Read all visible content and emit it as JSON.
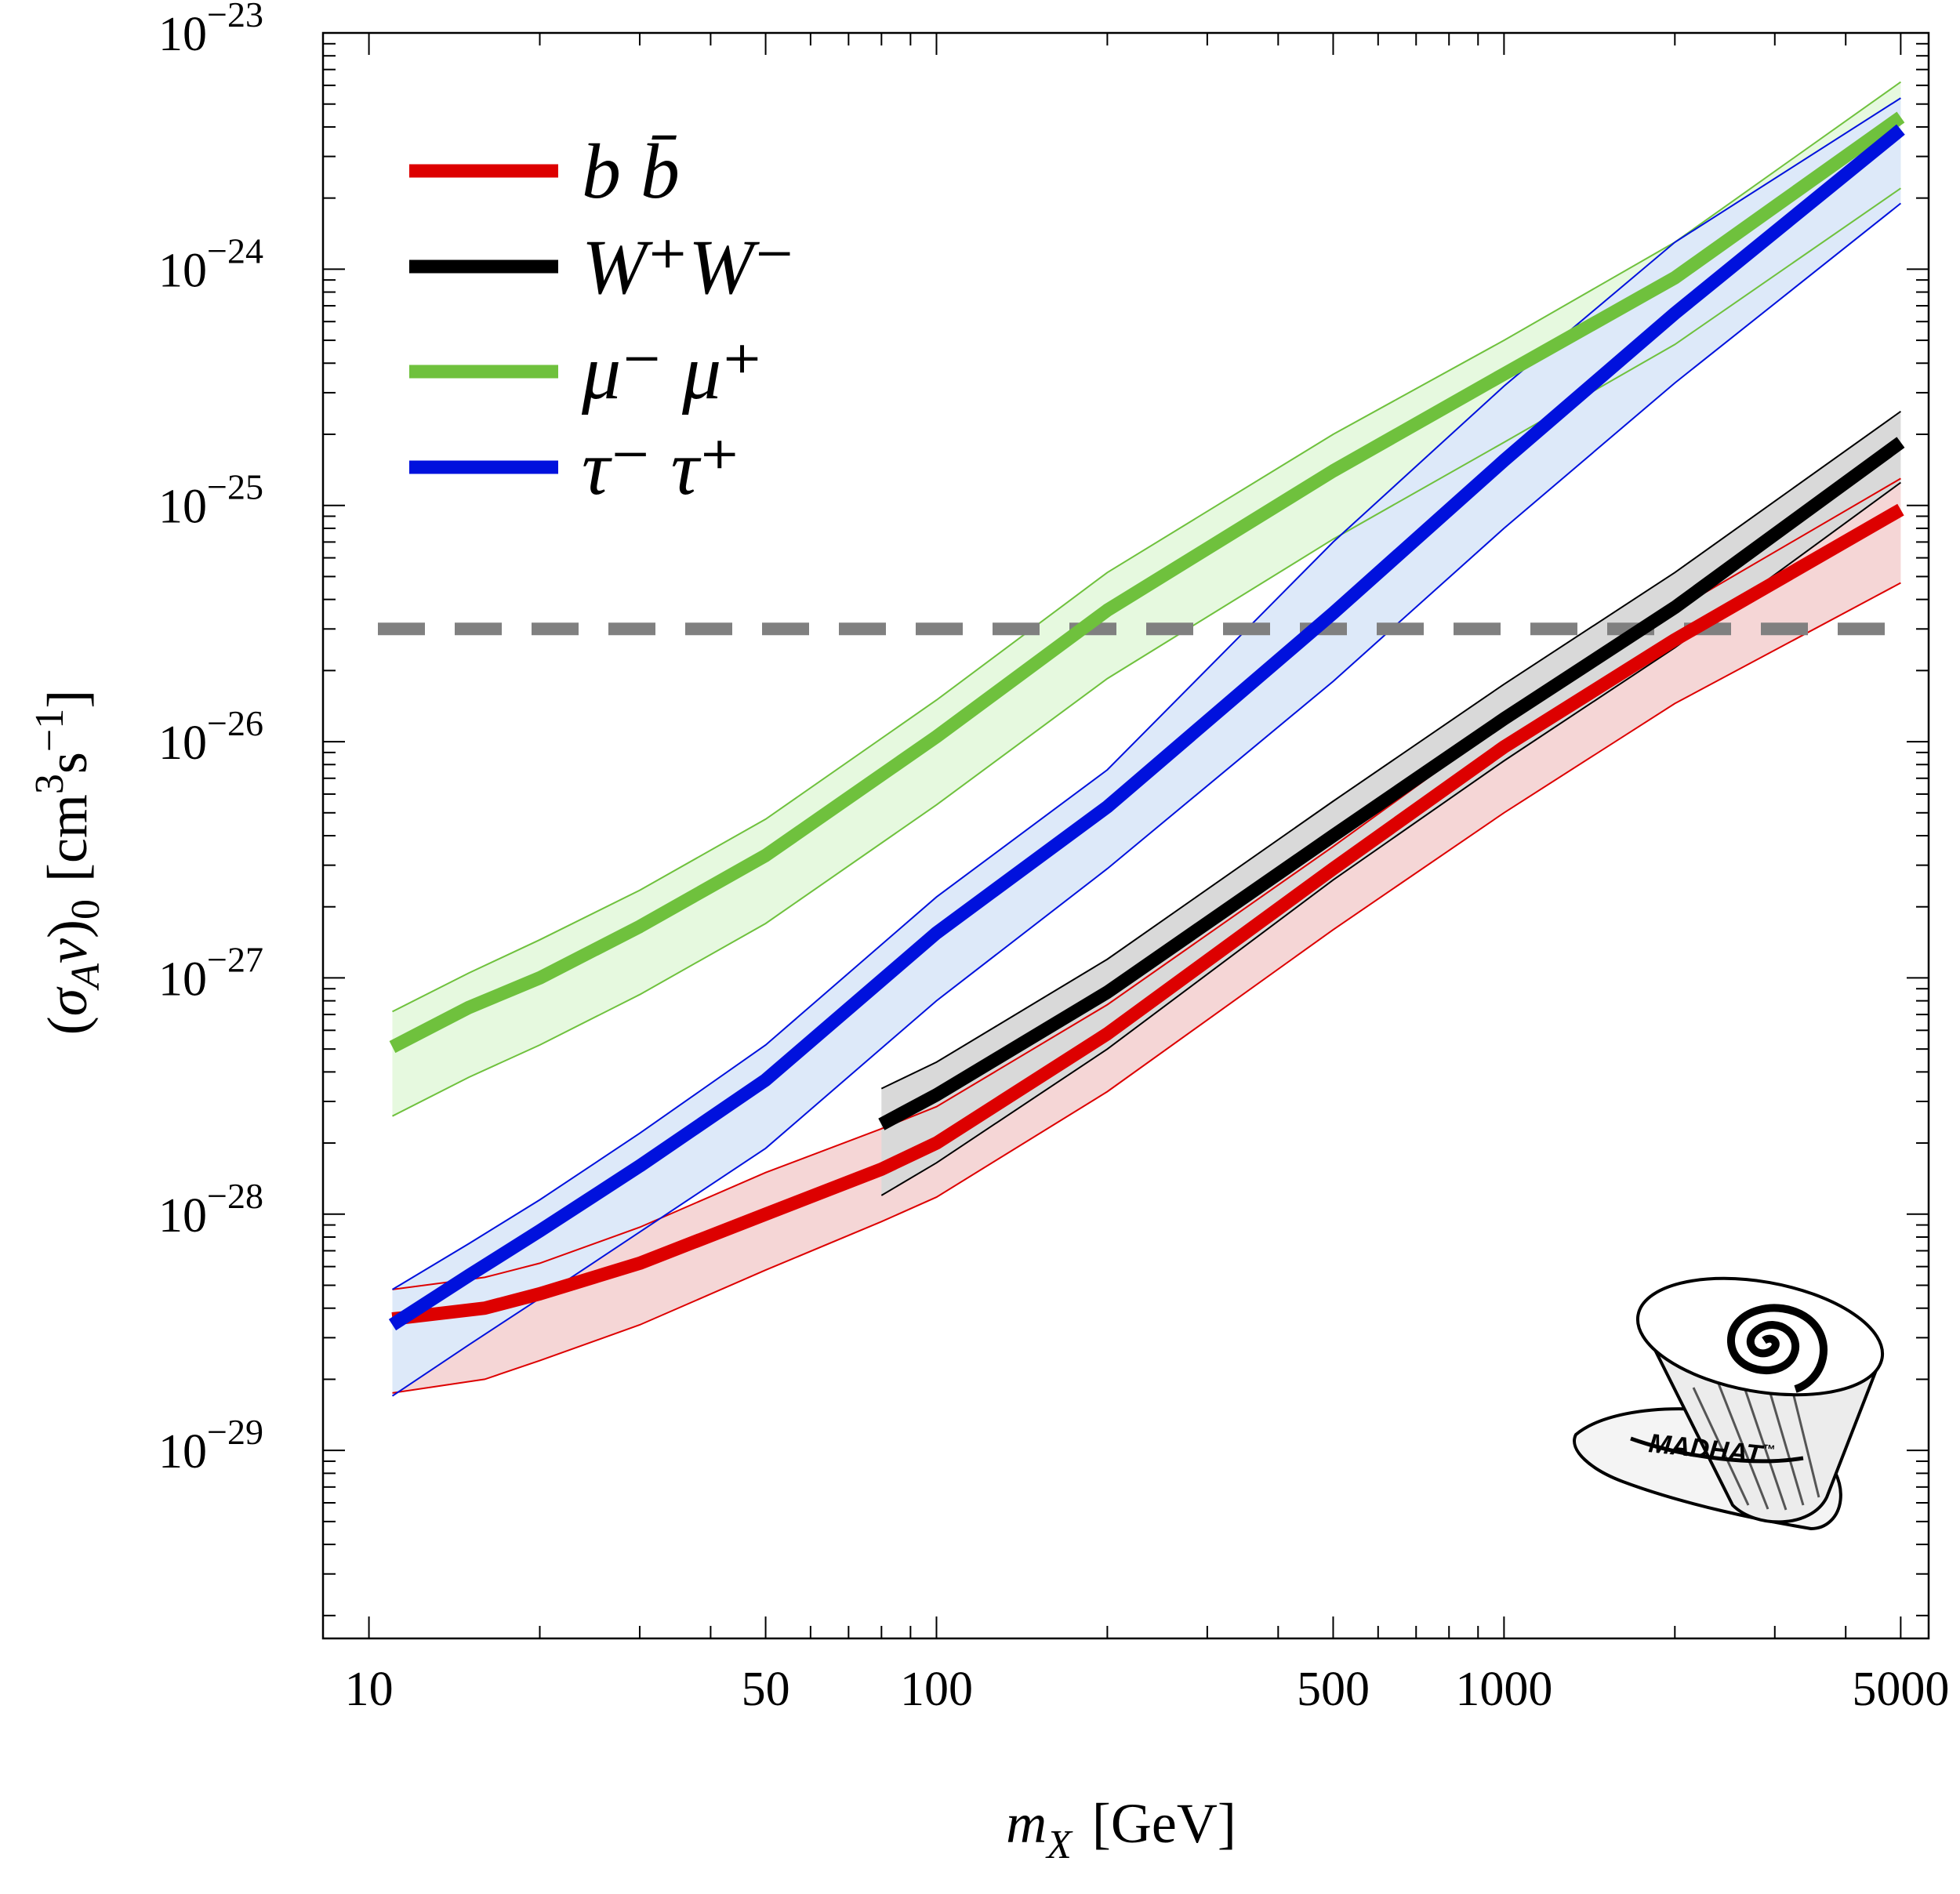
{
  "chart_data": {
    "type": "line",
    "xscale": "log",
    "yscale": "log",
    "xlim": [
      8.3,
      5600
    ],
    "ylim": [
      1.6e-30,
      1e-23
    ],
    "xlabel": "m_X [GeV]",
    "ylabel": "(σ_A v)_0 [cm^3 s^-1]",
    "xticks": [
      {
        "value": 10,
        "label": "10"
      },
      {
        "value": 50,
        "label": "50"
      },
      {
        "value": 100,
        "label": "100"
      },
      {
        "value": 500,
        "label": "500"
      },
      {
        "value": 1000,
        "label": "1000"
      },
      {
        "value": 5000,
        "label": "5000"
      }
    ],
    "yticks": [
      {
        "value": 1e-29,
        "base": "10",
        "exp": "−29"
      },
      {
        "value": 1e-28,
        "base": "10",
        "exp": "−28"
      },
      {
        "value": 1e-27,
        "base": "10",
        "exp": "−27"
      },
      {
        "value": 1e-26,
        "base": "10",
        "exp": "−26"
      },
      {
        "value": 1e-25,
        "base": "10",
        "exp": "−25"
      },
      {
        "value": 1e-24,
        "base": "10",
        "exp": "−24"
      },
      {
        "value": 1e-23,
        "base": "10",
        "exp": "−23"
      }
    ],
    "reference_line": {
      "y": 3e-26,
      "color": "#808080",
      "style": "dashed"
    },
    "series": [
      {
        "name": "b b̄",
        "color": "#dd0000",
        "band_fill": "#f5d6d6",
        "x": [
          11,
          16,
          20,
          30,
          50,
          80,
          100,
          200,
          500,
          1000,
          2000,
          5000
        ],
        "central": [
          3.6e-29,
          4e-29,
          4.6e-29,
          6.2e-29,
          1e-28,
          1.55e-28,
          2e-28,
          5.8e-28,
          2.9e-27,
          9.5e-27,
          2.7e-26,
          9.6e-26
        ],
        "upper": [
          4.8e-29,
          5.4e-29,
          6.2e-29,
          8.8e-29,
          1.5e-28,
          2.3e-28,
          2.85e-28,
          7.7e-28,
          3.6e-27,
          1.2e-26,
          3.6e-26,
          1.3e-25
        ],
        "lower": [
          1.75e-29,
          2e-29,
          2.4e-29,
          3.4e-29,
          5.8e-29,
          9.3e-29,
          1.18e-28,
          3.3e-28,
          1.6e-27,
          5e-27,
          1.45e-26,
          4.7e-26
        ]
      },
      {
        "name": "W⁺W⁻",
        "color": "#000000",
        "band_fill": "#d9d9d9",
        "x": [
          80,
          100,
          200,
          500,
          1000,
          2000,
          5000
        ],
        "central": [
          2.4e-28,
          3.2e-28,
          8.7e-28,
          4e-27,
          1.25e-26,
          3.7e-26,
          1.85e-25
        ],
        "upper": [
          3.4e-28,
          4.4e-28,
          1.2e-27,
          5.6e-27,
          1.75e-26,
          5.2e-26,
          2.5e-25
        ],
        "lower": [
          1.2e-28,
          1.65e-28,
          5e-28,
          2.6e-27,
          8.3e-27,
          2.5e-26,
          1.25e-25
        ]
      },
      {
        "name": "μ⁻ μ⁺",
        "color": "#6fc13d",
        "band_fill": "#e6f9df",
        "x": [
          11,
          15,
          20,
          30,
          50,
          100,
          200,
          500,
          1000,
          2000,
          5000
        ],
        "central": [
          5.1e-28,
          7.5e-28,
          1e-27,
          1.65e-27,
          3.3e-27,
          1.05e-26,
          3.6e-26,
          1.4e-25,
          3.6e-25,
          9.2e-25,
          4.4e-24
        ],
        "upper": [
          7.2e-28,
          1.05e-27,
          1.45e-27,
          2.35e-27,
          4.7e-27,
          1.5e-26,
          5.2e-26,
          2e-25,
          5e-25,
          1.3e-24,
          6.2e-24
        ],
        "lower": [
          2.6e-28,
          3.8e-28,
          5.2e-28,
          8.5e-28,
          1.7e-27,
          5.4e-27,
          1.85e-26,
          7.2e-26,
          1.85e-25,
          4.8e-25,
          2.2e-24
        ]
      },
      {
        "name": "τ⁻ τ⁺",
        "color": "#0011dd",
        "band_fill": "#dde9f9",
        "x": [
          11,
          15,
          20,
          30,
          50,
          100,
          200,
          500,
          1000,
          2000,
          5000
        ],
        "central": [
          3.4e-29,
          5.5e-29,
          8.5e-29,
          1.6e-28,
          3.7e-28,
          1.55e-27,
          5.3e-27,
          3.5e-26,
          1.55e-25,
          6.5e-25,
          3.9e-24
        ],
        "upper": [
          4.8e-29,
          7.5e-29,
          1.15e-28,
          2.2e-28,
          5.2e-28,
          2.2e-27,
          7.6e-27,
          7e-26,
          3.2e-25,
          1.3e-24,
          5.3e-24
        ],
        "lower": [
          1.7e-29,
          2.8e-29,
          4.4e-29,
          8.4e-29,
          1.9e-28,
          8e-28,
          2.9e-27,
          1.8e-26,
          8e-26,
          3.3e-25,
          1.9e-24
        ]
      }
    ],
    "legend": {
      "placement": "top-left",
      "order": [
        0,
        1,
        2,
        3
      ]
    },
    "logo": {
      "text": "MADHAT",
      "mark": "™"
    }
  }
}
